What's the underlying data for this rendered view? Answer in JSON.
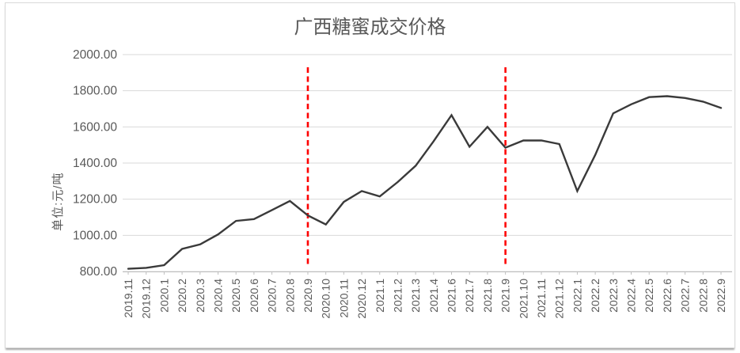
{
  "chart_data": {
    "type": "line",
    "title": "广西糖蜜成交价格",
    "ylabel": "单位:元/吨",
    "xlabel": "",
    "ylim": [
      800,
      2000
    ],
    "ytick_step": 200,
    "ytick_labels": [
      "800.00",
      "1000.00",
      "1200.00",
      "1400.00",
      "1600.00",
      "1800.00",
      "2000.00"
    ],
    "grid": "horizontal",
    "legend_position": "none",
    "categories": [
      "2019.11",
      "2019.12",
      "2020.1",
      "2020.2",
      "2020.3",
      "2020.4",
      "2020.5",
      "2020.6",
      "2020.7",
      "2020.8",
      "2020.9",
      "2020.10",
      "2020.11",
      "2020.12",
      "2021.1",
      "2021.2",
      "2021.3",
      "2021.4",
      "2021.6",
      "2021.7",
      "2021.8",
      "2021.9",
      "2021.10",
      "2021.11",
      "2021.12",
      "2022.1",
      "2022.2",
      "2022.3",
      "2022.4",
      "2022.5",
      "2022.6",
      "2022.7",
      "2022.8",
      "2022.9"
    ],
    "series": [
      {
        "name": "广西糖蜜成交价格",
        "color": "#3a3a3a",
        "values": [
          815,
          820,
          835,
          925,
          950,
          1005,
          1080,
          1090,
          1140,
          1190,
          1110,
          1060,
          1185,
          1245,
          1215,
          1295,
          1385,
          1520,
          1665,
          1490,
          1600,
          1485,
          1525,
          1525,
          1505,
          1245,
          1445,
          1675,
          1725,
          1765,
          1770,
          1760,
          1740,
          1705
        ]
      }
    ],
    "vlines": [
      {
        "category": "2020.9",
        "color": "#fe0000",
        "style": "dashed"
      },
      {
        "category": "2021.9",
        "color": "#fe0000",
        "style": "dashed"
      }
    ],
    "colors": {
      "grid": "#d9d9d9",
      "axis": "#bfbfbf",
      "text": "#595959"
    }
  }
}
